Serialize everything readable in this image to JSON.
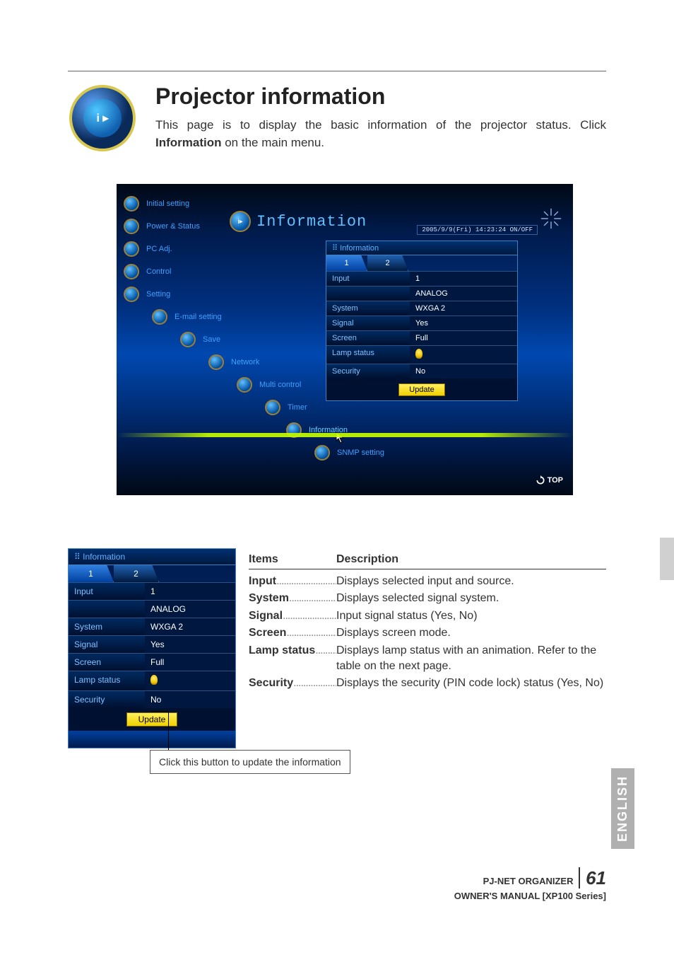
{
  "heading": "Projector information",
  "intro_pre": "This page is to display the basic information of the projector status. Click ",
  "intro_bold": "Information",
  "intro_post": " on the main menu.",
  "datetime": "2005/9/9(Fri)   14:23:24  ON/OFF",
  "info_title": "Information",
  "panel_header_prefix": "⠿ ",
  "panel_header": "Information",
  "top_link": "TOP",
  "nav": [
    {
      "label": "Initial setting",
      "indent": 0
    },
    {
      "label": "Power & Status",
      "indent": 0
    },
    {
      "label": "PC Adj.",
      "indent": 0
    },
    {
      "label": "Control",
      "indent": 0
    },
    {
      "label": "Setting",
      "indent": 0
    },
    {
      "label": "E-mail setting",
      "indent": 1
    },
    {
      "label": "Save",
      "indent": 2
    },
    {
      "label": "Network",
      "indent": 3
    },
    {
      "label": "Multi control",
      "indent": 4
    },
    {
      "label": "Timer",
      "indent": 5
    },
    {
      "label": "Information",
      "indent": 6,
      "active": true
    },
    {
      "label": "SNMP setting",
      "indent": 7
    }
  ],
  "tabs": [
    "1",
    "2"
  ],
  "active_tab": 0,
  "rows": [
    {
      "label": "Input",
      "value": "1",
      "value2": "ANALOG"
    },
    {
      "label": "System",
      "value": "WXGA 2"
    },
    {
      "label": "Signal",
      "value": "Yes"
    },
    {
      "label": "Screen",
      "value": "Full"
    },
    {
      "label": "Lamp status",
      "value": "",
      "lamp": true
    },
    {
      "label": "Security",
      "value": "No"
    }
  ],
  "update_label": "Update",
  "callout": "Click this button to update the information",
  "desc_header": {
    "c1": "Items",
    "c2": "Description"
  },
  "desc": [
    {
      "item": "Input",
      "text": "Displays selected input and source."
    },
    {
      "item": "System",
      "text": "Displays selected signal system."
    },
    {
      "item": "Signal",
      "text": "Input signal status (Yes, No)"
    },
    {
      "item": "Screen",
      "text": "Displays screen mode."
    },
    {
      "item": "Lamp status",
      "text": "Displays lamp status with an animation. Refer to the table on the next page."
    },
    {
      "item": "Security",
      "text": "Displays the security (PIN code lock) status (Yes, No)"
    }
  ],
  "lang_tab": "ENGLISH",
  "footer_line1": "PJ-NET ORGANIZER",
  "page_number": "61",
  "footer_line2": "OWNER'S MANUAL [XP100 Series]"
}
